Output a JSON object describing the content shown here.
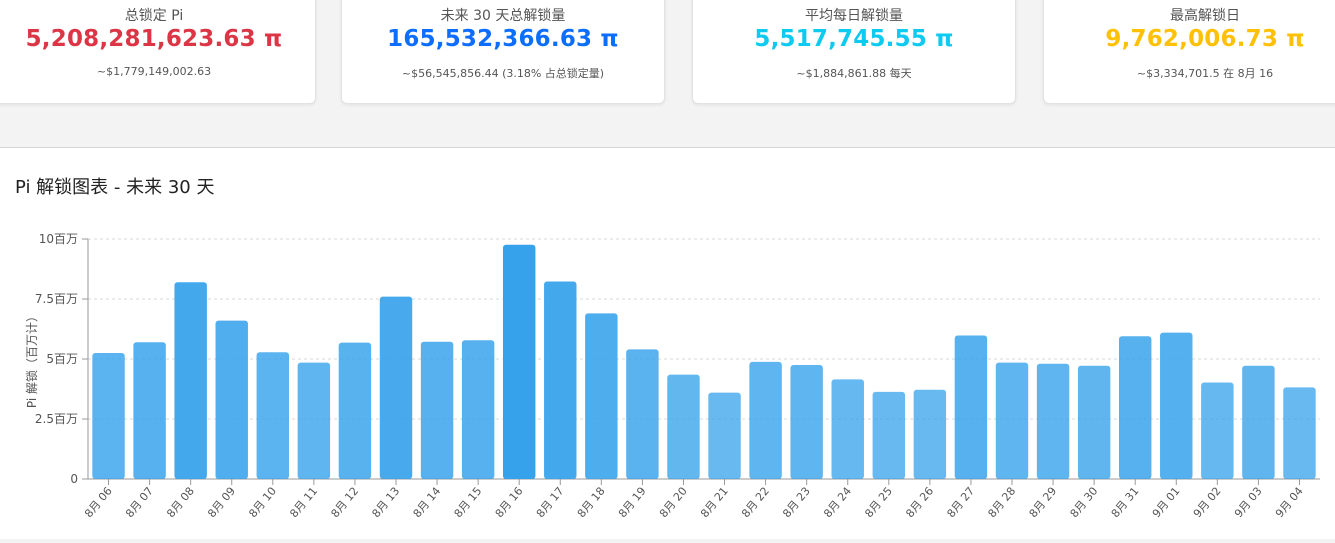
{
  "stats": [
    {
      "label": "总锁定 Pi",
      "value": "5,208,281,623.63 π",
      "sub": "~$1,779,149,002.63",
      "color": "#dc3545"
    },
    {
      "label": "未来 30 天总解锁量",
      "value": "165,532,366.63 π",
      "sub": "~$56,545,856.44 (3.18% 占总锁定量)",
      "color": "#0d6efd"
    },
    {
      "label": "平均每日解锁量",
      "value": "5,517,745.55 π",
      "sub": "~$1,884,861.88 每天",
      "color": "#0dcaf0"
    },
    {
      "label": "最高解锁日",
      "value": "9,762,006.73 π",
      "sub": "~$3,334,701.5 在 8月 16",
      "color": "#ffc107"
    }
  ],
  "chart_title": "Pi 解锁图表 - 未来 30 天",
  "chart_data": {
    "type": "bar",
    "title": "Pi 解锁图表 - 未来 30 天",
    "ylabel": "Pi 解锁（百万计）",
    "xlabel": "",
    "ylim": [
      0,
      10
    ],
    "y_ticks": [
      0,
      2.5,
      5,
      7.5,
      10
    ],
    "y_tick_labels": [
      "0",
      "2.5百万",
      "5百万",
      "7.5百万",
      "10百万"
    ],
    "grid": "horizontal dashed",
    "legend": "none",
    "categories": [
      "8月 06",
      "8月 07",
      "8月 08",
      "8月 09",
      "8月 10",
      "8月 11",
      "8月 12",
      "8月 13",
      "8月 14",
      "8月 15",
      "8月 16",
      "8月 17",
      "8月 18",
      "8月 19",
      "8月 20",
      "8月 21",
      "8月 22",
      "8月 23",
      "8月 24",
      "8月 25",
      "8月 26",
      "8月 27",
      "8月 28",
      "8月 29",
      "8月 30",
      "8月 31",
      "9月 01",
      "9月 02",
      "9月 03",
      "9月 04"
    ],
    "values": [
      5.25,
      5.7,
      8.2,
      6.6,
      5.28,
      4.85,
      5.68,
      7.6,
      5.72,
      5.78,
      9.76,
      8.23,
      6.9,
      5.4,
      4.35,
      3.6,
      4.88,
      4.75,
      4.15,
      3.63,
      3.72,
      5.98,
      4.85,
      4.8,
      4.72,
      5.95,
      6.1,
      4.02,
      4.72,
      3.82
    ],
    "bar_color": "#36a2eb"
  }
}
